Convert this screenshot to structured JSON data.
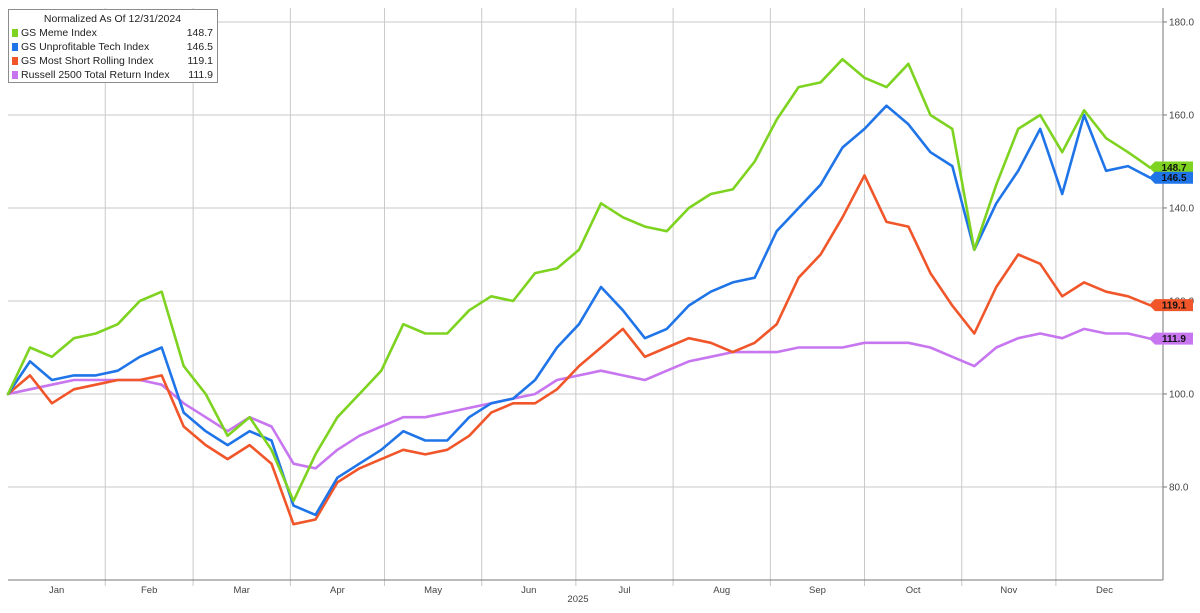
{
  "chart_data": {
    "type": "line",
    "title": "Normalized As Of 12/31/2024",
    "xlabel": "2025",
    "ylabel": "",
    "ylim": [
      60,
      183
    ],
    "yticks": [
      80,
      100,
      120,
      140,
      160,
      180
    ],
    "ytick_labels": [
      "80.0",
      "100.0",
      "120.0",
      "140.0",
      "160.0",
      "180.0"
    ],
    "months": [
      "Jan",
      "Feb",
      "Mar",
      "Apr",
      "May",
      "Jun",
      "Jul",
      "Aug",
      "Sep",
      "Oct",
      "Nov",
      "Dec"
    ],
    "grid": true,
    "legend_position": "top-left",
    "x": [
      "2025-01-01",
      "2025-01-08",
      "2025-01-15",
      "2025-01-22",
      "2025-01-29",
      "2025-02-05",
      "2025-02-12",
      "2025-02-19",
      "2025-02-26",
      "2025-03-05",
      "2025-03-12",
      "2025-03-19",
      "2025-03-26",
      "2025-04-02",
      "2025-04-09",
      "2025-04-16",
      "2025-04-23",
      "2025-04-30",
      "2025-05-07",
      "2025-05-14",
      "2025-05-21",
      "2025-05-28",
      "2025-06-04",
      "2025-06-11",
      "2025-06-18",
      "2025-06-25",
      "2025-07-02",
      "2025-07-09",
      "2025-07-16",
      "2025-07-23",
      "2025-07-30",
      "2025-08-06",
      "2025-08-13",
      "2025-08-20",
      "2025-08-27",
      "2025-09-03",
      "2025-09-10",
      "2025-09-17",
      "2025-09-24",
      "2025-10-01",
      "2025-10-08",
      "2025-10-15",
      "2025-10-22",
      "2025-10-29",
      "2025-11-05",
      "2025-11-12",
      "2025-11-19",
      "2025-11-26",
      "2025-12-03",
      "2025-12-10",
      "2025-12-17",
      "2025-12-24",
      "2025-12-31"
    ],
    "series": [
      {
        "name": "GS Meme Index",
        "last": "148.7",
        "color": "#7ed321",
        "values": [
          100,
          110,
          108,
          112,
          113,
          115,
          120,
          122,
          106,
          100,
          91,
          95,
          88,
          77,
          87,
          95,
          100,
          105,
          115,
          113,
          113,
          118,
          121,
          120,
          126,
          127,
          131,
          141,
          138,
          136,
          135,
          140,
          143,
          144,
          150,
          159,
          166,
          167,
          172,
          168,
          166,
          171,
          160,
          157,
          131,
          145,
          157,
          160,
          152,
          161,
          155,
          152,
          148.7
        ]
      },
      {
        "name": "GS Unprofitable Tech Index",
        "last": "146.5",
        "color": "#1f74e8",
        "values": [
          100,
          107,
          103,
          104,
          104,
          105,
          108,
          110,
          96,
          92,
          89,
          92,
          90,
          76,
          74,
          82,
          85,
          88,
          92,
          90,
          90,
          95,
          98,
          99,
          103,
          110,
          115,
          123,
          118,
          112,
          114,
          119,
          122,
          124,
          125,
          135,
          140,
          145,
          153,
          157,
          162,
          158,
          152,
          149,
          131,
          141,
          148,
          157,
          143,
          160,
          148,
          149,
          146.5
        ]
      },
      {
        "name": "GS Most Short Rolling Index",
        "last": "119.1",
        "color": "#f0562a",
        "values": [
          100,
          104,
          98,
          101,
          102,
          103,
          103,
          104,
          93,
          89,
          86,
          89,
          85,
          72,
          73,
          81,
          84,
          86,
          88,
          87,
          88,
          91,
          96,
          98,
          98,
          101,
          106,
          110,
          114,
          108,
          110,
          112,
          111,
          109,
          111,
          115,
          125,
          130,
          138,
          147,
          137,
          136,
          126,
          119,
          113,
          123,
          130,
          128,
          121,
          124,
          122,
          121,
          119.1
        ]
      },
      {
        "name": "Russell 2500 Total Return Index",
        "last": "111.9",
        "color": "#c776f0",
        "values": [
          100,
          101,
          102,
          103,
          103,
          103,
          103,
          102,
          98,
          95,
          92,
          95,
          93,
          85,
          84,
          88,
          91,
          93,
          95,
          95,
          96,
          97,
          98,
          99,
          100,
          103,
          104,
          105,
          104,
          103,
          105,
          107,
          108,
          109,
          109,
          109,
          110,
          110,
          110,
          111,
          111,
          111,
          110,
          108,
          106,
          110,
          112,
          113,
          112,
          114,
          113,
          113,
          111.9
        ]
      }
    ]
  }
}
